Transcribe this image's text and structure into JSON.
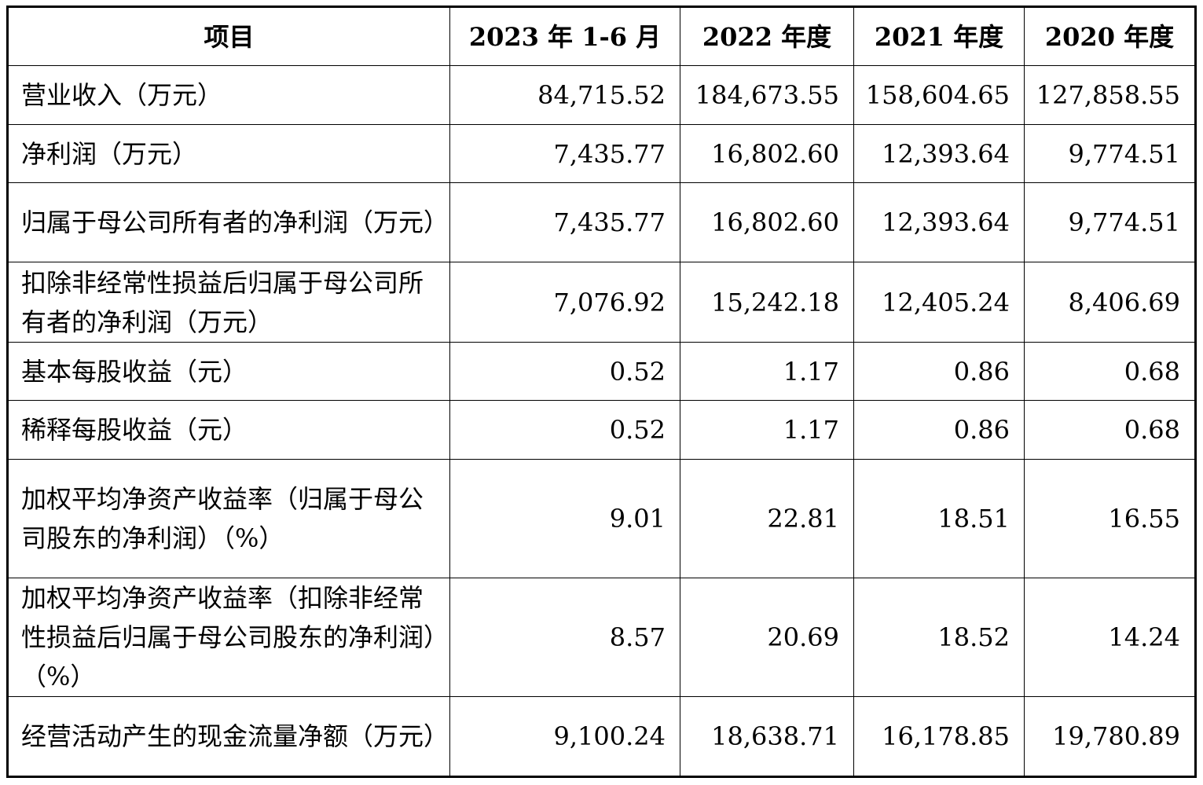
{
  "headers": [
    "项目",
    "2023 年 1-6 月",
    "2022 年度",
    "2021 年度",
    "2020 年度"
  ],
  "rows": [
    {
      "label": "营业收入（万元）",
      "values": [
        "84,715.52",
        "184,673.55",
        "158,604.65",
        "127,858.55"
      ]
    },
    {
      "label": "净利润（万元）",
      "values": [
        "7,435.77",
        "16,802.60",
        "12,393.64",
        "9,774.51"
      ]
    },
    {
      "label": "归属于母公司所有者的净利润（万元）",
      "values": [
        "7,435.77",
        "16,802.60",
        "12,393.64",
        "9,774.51"
      ]
    },
    {
      "label": "扣除非经常性损益后归属于母公司所有者的净利润（万元）",
      "values": [
        "7,076.92",
        "15,242.18",
        "12,405.24",
        "8,406.69"
      ]
    },
    {
      "label": "基本每股收益（元）",
      "values": [
        "0.52",
        "1.17",
        "0.86",
        "0.68"
      ]
    },
    {
      "label": "稀释每股收益（元）",
      "values": [
        "0.52",
        "1.17",
        "0.86",
        "0.68"
      ]
    },
    {
      "label": "加权平均净资产收益率（归属于母公司股东的净利润）（%）",
      "values": [
        "9.01",
        "22.81",
        "18.51",
        "16.55"
      ]
    },
    {
      "label": "加权平均净资产收益率（扣除非经常性损益后归属于母公司股东的净利润）（%）",
      "values": [
        "8.57",
        "20.69",
        "18.52",
        "14.24"
      ]
    },
    {
      "label": "经营活动产生的现金流量净额（万元）",
      "values": [
        "9,100.24",
        "18,638.71",
        "16,178.85",
        "19,780.89"
      ]
    }
  ]
}
